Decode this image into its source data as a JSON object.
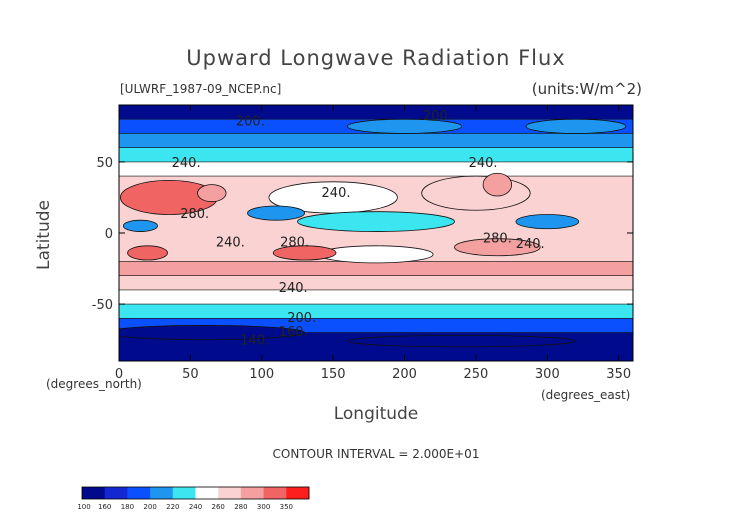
{
  "chart_data": {
    "type": "heatmap",
    "title": "Upward Longwave Radiation Flux",
    "source_label": "[ULWRF_1987-09_NCEP.nc]",
    "units_label": "(units:W/m^2)",
    "xlabel": "Longitude",
    "ylabel": "Latitude",
    "x_unit_label": "(degrees_east)",
    "y_unit_label": "(degrees_north)",
    "xlim": [
      0,
      360
    ],
    "ylim": [
      -90,
      90
    ],
    "x_ticks": [
      0,
      50,
      100,
      150,
      200,
      250,
      300,
      350
    ],
    "y_ticks": [
      -50,
      0,
      50
    ],
    "contour_interval_label": "CONTOUR INTERVAL = 2.000E+01",
    "contour_labels": [
      {
        "text": "200.",
        "lon": 92,
        "lat": 79
      },
      {
        "text": "200.",
        "lon": 223,
        "lat": 83
      },
      {
        "text": "240.",
        "lon": 47,
        "lat": 50
      },
      {
        "text": "240.",
        "lon": 152,
        "lat": 29
      },
      {
        "text": "240.",
        "lon": 255,
        "lat": 50
      },
      {
        "text": "280.",
        "lon": 53,
        "lat": 14
      },
      {
        "text": "240.",
        "lon": 78,
        "lat": -6
      },
      {
        "text": "280.",
        "lon": 123,
        "lat": -6
      },
      {
        "text": "280.",
        "lon": 265,
        "lat": -3
      },
      {
        "text": "240.",
        "lon": 288,
        "lat": -7
      },
      {
        "text": "240.",
        "lon": 122,
        "lat": -38
      },
      {
        "text": "200.",
        "lon": 128,
        "lat": -59
      },
      {
        "text": "160.",
        "lon": 122,
        "lat": -69
      },
      {
        "text": "140.",
        "lon": 95,
        "lat": -75
      }
    ],
    "colorbar": {
      "levels": [
        100,
        160,
        180,
        200,
        220,
        240,
        260,
        280,
        300,
        350
      ],
      "colors": [
        "#000a8c",
        "#1428d2",
        "#0a50ff",
        "#1e96f0",
        "#3ce6f0",
        "#ffffff",
        "#fad2d2",
        "#f5a0a0",
        "#f06464",
        "#ff1e1e"
      ]
    },
    "zonal_profile": [
      {
        "lat": 90,
        "value": 155
      },
      {
        "lat": 80,
        "value": 190
      },
      {
        "lat": 70,
        "value": 210
      },
      {
        "lat": 60,
        "value": 235
      },
      {
        "lat": 50,
        "value": 255
      },
      {
        "lat": 40,
        "value": 272
      },
      {
        "lat": 30,
        "value": 278
      },
      {
        "lat": 20,
        "value": 278
      },
      {
        "lat": 10,
        "value": 262
      },
      {
        "lat": 0,
        "value": 264
      },
      {
        "lat": -10,
        "value": 278
      },
      {
        "lat": -20,
        "value": 280
      },
      {
        "lat": -30,
        "value": 265
      },
      {
        "lat": -40,
        "value": 242
      },
      {
        "lat": -50,
        "value": 222
      },
      {
        "lat": -60,
        "value": 190
      },
      {
        "lat": -70,
        "value": 150
      },
      {
        "lat": -80,
        "value": 135
      },
      {
        "lat": -90,
        "value": 130
      }
    ]
  }
}
